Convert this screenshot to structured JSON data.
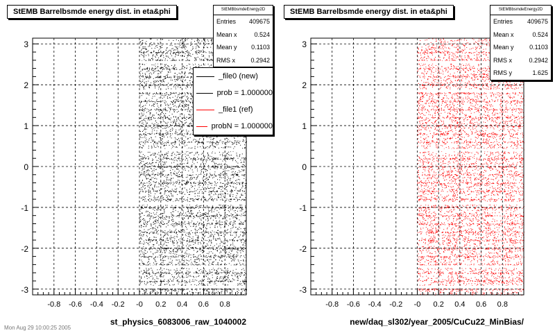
{
  "left": {
    "title": "StEMB Barrelbsmde energy dist. in eta&phi",
    "xlabel": "st_physics_6083006_raw_1040002",
    "stats": {
      "name": "StEMBbsmdeEnergy2D",
      "rows": [
        {
          "label": "Entries",
          "value": "409675"
        },
        {
          "label": "Mean x",
          "value": "0.524"
        },
        {
          "label": "Mean y",
          "value": "0.1103"
        },
        {
          "label": "RMS x",
          "value": "0.2942"
        }
      ]
    },
    "legend": [
      {
        "label": "_file0 (new)",
        "color": "#000000"
      },
      {
        "label": "prob = 1.000000",
        "color": "#000000"
      },
      {
        "label": "_file1 (ref)",
        "color": "#ff0000"
      },
      {
        "label": "probN = 1.000000",
        "color": "#ff0000"
      }
    ]
  },
  "right": {
    "title": "StEMB Barrelbsmde energy dist. in eta&phi",
    "xlabel": "new/daq_sl302/year_2005/CuCu22_MinBias/",
    "stats": {
      "name": "StEMBbsmdeEnergy2D",
      "rows": [
        {
          "label": "Entries",
          "value": "409675"
        },
        {
          "label": "Mean x",
          "value": "0.524"
        },
        {
          "label": "Mean y",
          "value": "0.1103"
        },
        {
          "label": "RMS x",
          "value": "0.2942"
        },
        {
          "label": "RMS y",
          "value": "1.625"
        }
      ]
    }
  },
  "footer": "Mon Aug 29 10:00:25 2005",
  "chart_data": [
    {
      "type": "scatter",
      "title": "StEMB Barrelbsmde energy dist. in eta&phi",
      "xlabel": "st_physics_6083006_raw_1040002",
      "ylabel": "",
      "xlim": [
        -1,
        1
      ],
      "ylim": [
        -3.14,
        3.14
      ],
      "xticks": [
        "-0.8",
        "-0.6",
        "-0.4",
        "-0.2",
        "-0",
        "0.2",
        "0.4",
        "0.6",
        "0.8"
      ],
      "yticks": [
        "3",
        "2",
        "1",
        "0",
        "-1",
        "-2",
        "-3"
      ],
      "grid": true,
      "series": [
        {
          "name": "_file0 (new)",
          "color": "#000000",
          "x_range": [
            0,
            1
          ],
          "y_range": [
            -3.14,
            3.14
          ]
        }
      ],
      "legend_position": "top-right"
    },
    {
      "type": "scatter",
      "title": "StEMB Barrelbsmde energy dist. in eta&phi",
      "xlabel": "new/daq_sl302/year_2005/CuCu22_MinBias/",
      "ylabel": "",
      "xlim": [
        -1,
        1
      ],
      "ylim": [
        -3.14,
        3.14
      ],
      "xticks": [
        "-0.8",
        "-0.6",
        "-0.4",
        "-0.2",
        "-0",
        "0.2",
        "0.4",
        "0.6",
        "0.8"
      ],
      "yticks": [
        "3",
        "2",
        "1",
        "0",
        "-1",
        "-2",
        "-3"
      ],
      "grid": true,
      "series": [
        {
          "name": "_file1 (ref)",
          "color": "#ff0000",
          "x_range": [
            0,
            1
          ],
          "y_range": [
            -3.14,
            3.14
          ]
        }
      ]
    }
  ]
}
